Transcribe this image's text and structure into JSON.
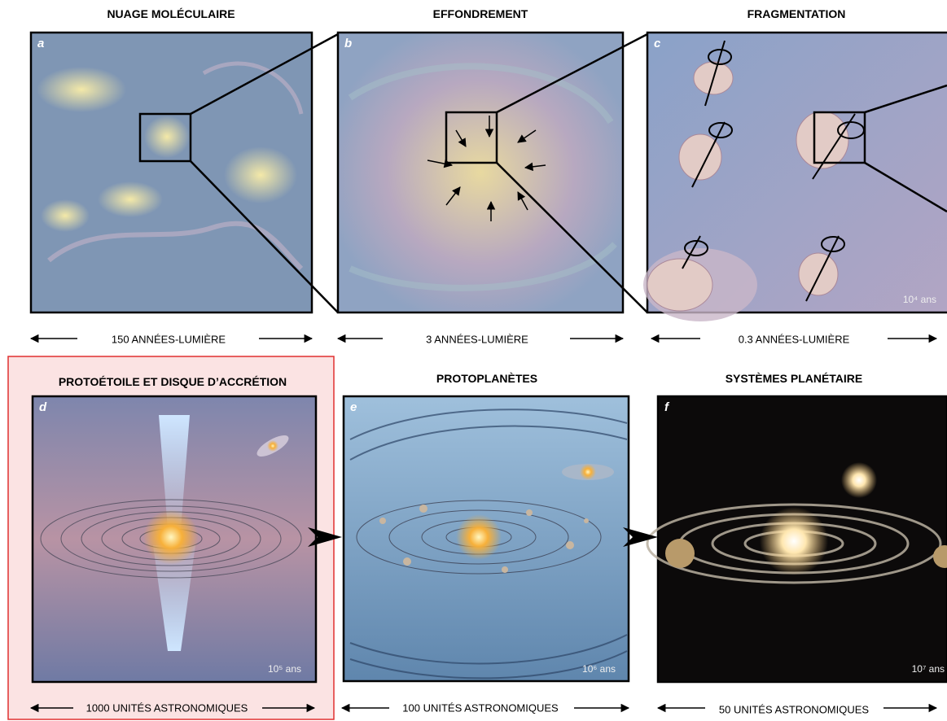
{
  "panels": [
    {
      "title": "NUAGE MOLÉCULAIRE",
      "letter": "a",
      "scale": "150 ANNÉES-LUMIÈRE"
    },
    {
      "title": "EFFONDREMENT",
      "letter": "b",
      "scale": "3 ANNÉES-LUMIÈRE"
    },
    {
      "title": "FRAGMENTATION",
      "letter": "c",
      "scale": "0.3 ANNÉES-LUMIÈRE",
      "age": "10⁴ ans"
    },
    {
      "title": "PROTOÉTOILE ET DISQUE D’ACCRÉTION",
      "letter": "d",
      "scale": "1000 UNITÉS ASTRONOMIQUES",
      "age": "10⁵ ans"
    },
    {
      "title": "PROTOPLANÈTES",
      "letter": "e",
      "scale": "100 UNITÉS ASTRONOMIQUES",
      "age": "10⁶ ans"
    },
    {
      "title": "SYSTÈMES PLANÉTAIRE",
      "letter": "f",
      "scale": "50 UNITÉS ASTRONOMIQUES",
      "age": "10⁷ ans"
    }
  ]
}
